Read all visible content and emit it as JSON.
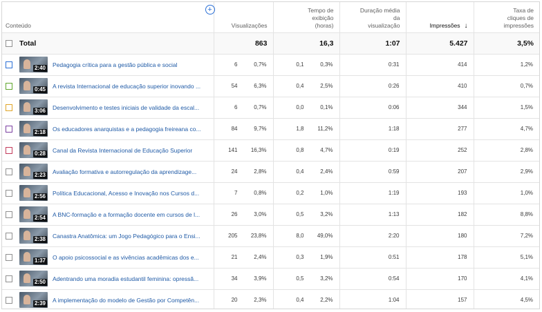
{
  "headers": {
    "content": "Conteúdo",
    "views": "Visualizações",
    "watch_line1": "Tempo de",
    "watch_line2": "exibição",
    "watch_line3": "(horas)",
    "avg_line1": "Duração média",
    "avg_line2": "da",
    "avg_line3": "visualização",
    "impressions": "Impressões",
    "ctr_line1": "Taxa de",
    "ctr_line2": "cliques de",
    "ctr_line3": "impressões"
  },
  "icons": {
    "add": "add-circle-icon",
    "sort": "arrow-down-icon",
    "add_glyph": "+",
    "sort_glyph": "↓"
  },
  "total": {
    "label": "Total",
    "views": "863",
    "watch": "16,3",
    "avg": "1:07",
    "impressions": "5.427",
    "ctr": "3,5%"
  },
  "rows": [
    {
      "checkbox_color": "#2a6fd6",
      "duration": "2:40",
      "title": "Pedagogia crítica para a gestão pública e social",
      "views": "6",
      "views_pct": "0,7%",
      "watch": "0,1",
      "watch_pct": "0,3%",
      "avg": "0:31",
      "impressions": "414",
      "ctr": "1,2%"
    },
    {
      "checkbox_color": "#5fa52c",
      "duration": "0:45",
      "title": "A revista Internacional de educação superior inovando ...",
      "views": "54",
      "views_pct": "6,3%",
      "watch": "0,4",
      "watch_pct": "2,5%",
      "avg": "0:26",
      "impressions": "410",
      "ctr": "0,7%"
    },
    {
      "checkbox_color": "#e0a426",
      "duration": "3:06",
      "title": "Desenvolvimento e testes iniciais de validade da escal...",
      "views": "6",
      "views_pct": "0,7%",
      "watch": "0,0",
      "watch_pct": "0,1%",
      "avg": "0:06",
      "impressions": "344",
      "ctr": "1,5%"
    },
    {
      "checkbox_color": "#7a3fa0",
      "duration": "2:18",
      "title": "Os educadores anarquistas e a pedagogia freireana co...",
      "views": "84",
      "views_pct": "9,7%",
      "watch": "1,8",
      "watch_pct": "11,2%",
      "avg": "1:18",
      "impressions": "277",
      "ctr": "4,7%"
    },
    {
      "checkbox_color": "#c23a5a",
      "duration": "0:28",
      "title": "Canal da Revista Internacional de Educação Superior",
      "views": "141",
      "views_pct": "16,3%",
      "watch": "0,8",
      "watch_pct": "4,7%",
      "avg": "0:19",
      "impressions": "252",
      "ctr": "2,8%"
    },
    {
      "checkbox_color": "#909090",
      "duration": "2:23",
      "title": "Avaliação formativa e autorregulação da aprendizage...",
      "views": "24",
      "views_pct": "2,8%",
      "watch": "0,4",
      "watch_pct": "2,4%",
      "avg": "0:59",
      "impressions": "207",
      "ctr": "2,9%"
    },
    {
      "checkbox_color": "#909090",
      "duration": "2:56",
      "title": "Política Educacional, Acesso e Inovação nos Cursos d...",
      "views": "7",
      "views_pct": "0,8%",
      "watch": "0,2",
      "watch_pct": "1,0%",
      "avg": "1:19",
      "impressions": "193",
      "ctr": "1,0%"
    },
    {
      "checkbox_color": "#909090",
      "duration": "2:54",
      "title": "A BNC-formação e a formação docente em cursos de l...",
      "views": "26",
      "views_pct": "3,0%",
      "watch": "0,5",
      "watch_pct": "3,2%",
      "avg": "1:13",
      "impressions": "182",
      "ctr": "8,8%"
    },
    {
      "checkbox_color": "#909090",
      "duration": "2:38",
      "title": "Canastra Anatômica: um Jogo Pedagógico para o Ensi...",
      "views": "205",
      "views_pct": "23,8%",
      "watch": "8,0",
      "watch_pct": "49,0%",
      "avg": "2:20",
      "impressions": "180",
      "ctr": "7,2%"
    },
    {
      "checkbox_color": "#909090",
      "duration": "1:37",
      "title": "O apoio psicossocial e as vivências acadêmicas dos e...",
      "views": "21",
      "views_pct": "2,4%",
      "watch": "0,3",
      "watch_pct": "1,9%",
      "avg": "0:51",
      "impressions": "178",
      "ctr": "5,1%"
    },
    {
      "checkbox_color": "#909090",
      "duration": "2:50",
      "title": "Adentrando uma moradia estudantil feminina: opressã...",
      "views": "34",
      "views_pct": "3,9%",
      "watch": "0,5",
      "watch_pct": "3,2%",
      "avg": "0:54",
      "impressions": "170",
      "ctr": "4,1%"
    },
    {
      "checkbox_color": "#909090",
      "duration": "2:39",
      "title": "A implementação do modelo de Gestão por Competên...",
      "views": "20",
      "views_pct": "2,3%",
      "watch": "0,4",
      "watch_pct": "2,2%",
      "avg": "1:04",
      "impressions": "157",
      "ctr": "4,5%"
    }
  ]
}
